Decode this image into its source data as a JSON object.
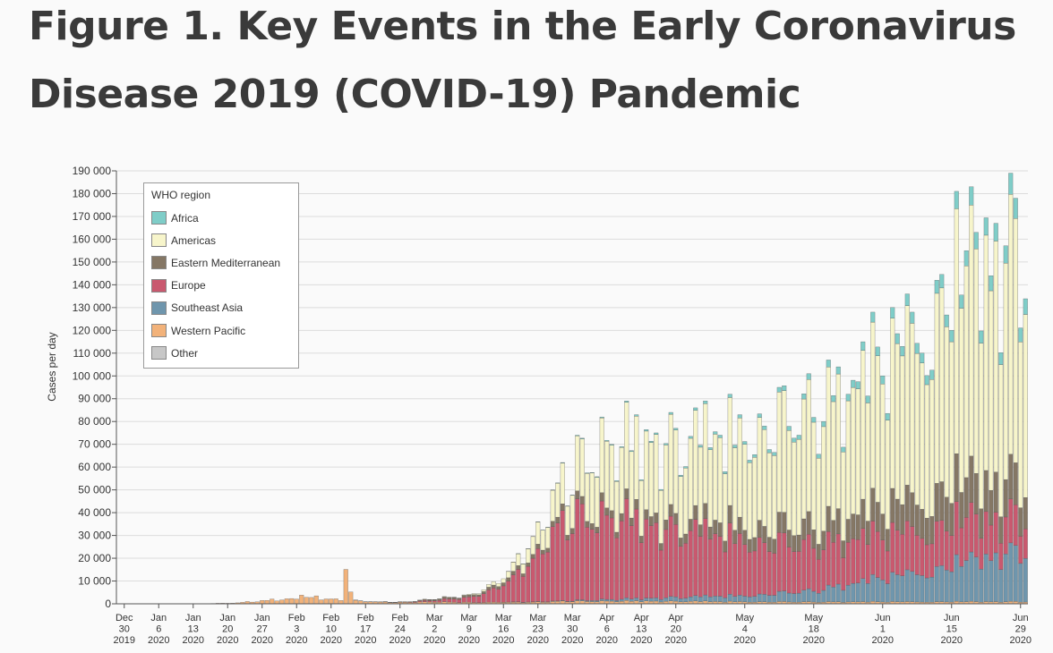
{
  "title_line1": "Figure 1.  Key Events in the Early Coronavirus",
  "title_line2": "Disease 2019 (COVID-19) Pandemic",
  "chart_data": {
    "type": "bar",
    "stacked": true,
    "ylabel": "Cases per day",
    "ylim": [
      0,
      190000
    ],
    "ytick_step": 10000,
    "grid": true,
    "legend_title": "WHO region",
    "legend_position": "top-left",
    "start_date": "2019-12-30",
    "end_date": "2020-06-30",
    "xtick_labels": [
      {
        "date": "2019-12-30",
        "lines": [
          "Dec",
          "30",
          "2019"
        ]
      },
      {
        "date": "2020-01-06",
        "lines": [
          "Jan",
          "6",
          "2020"
        ]
      },
      {
        "date": "2020-01-13",
        "lines": [
          "Jan",
          "13",
          "2020"
        ]
      },
      {
        "date": "2020-01-20",
        "lines": [
          "Jan",
          "20",
          "2020"
        ]
      },
      {
        "date": "2020-01-27",
        "lines": [
          "Jan",
          "27",
          "2020"
        ]
      },
      {
        "date": "2020-02-03",
        "lines": [
          "Feb",
          "3",
          "2020"
        ]
      },
      {
        "date": "2020-02-10",
        "lines": [
          "Feb",
          "10",
          "2020"
        ]
      },
      {
        "date": "2020-02-17",
        "lines": [
          "Feb",
          "17",
          "2020"
        ]
      },
      {
        "date": "2020-02-24",
        "lines": [
          "Feb",
          "24",
          "2020"
        ]
      },
      {
        "date": "2020-03-02",
        "lines": [
          "Mar",
          "2",
          "2020"
        ]
      },
      {
        "date": "2020-03-09",
        "lines": [
          "Mar",
          "9",
          "2020"
        ]
      },
      {
        "date": "2020-03-16",
        "lines": [
          "Mar",
          "16",
          "2020"
        ]
      },
      {
        "date": "2020-03-23",
        "lines": [
          "Mar",
          "23",
          "2020"
        ]
      },
      {
        "date": "2020-03-30",
        "lines": [
          "Mar",
          "30",
          "2020"
        ]
      },
      {
        "date": "2020-04-06",
        "lines": [
          "Apr",
          "6",
          "2020"
        ]
      },
      {
        "date": "2020-04-13",
        "lines": [
          "Apr",
          "13",
          "2020"
        ]
      },
      {
        "date": "2020-04-20",
        "lines": [
          "Apr",
          "20",
          "2020"
        ]
      },
      {
        "date": "2020-05-04",
        "lines": [
          "May",
          "4",
          "2020"
        ]
      },
      {
        "date": "2020-05-18",
        "lines": [
          "May",
          "18",
          "2020"
        ]
      },
      {
        "date": "2020-06-01",
        "lines": [
          "Jun",
          "1",
          "2020"
        ]
      },
      {
        "date": "2020-06-15",
        "lines": [
          "Jun",
          "15",
          "2020"
        ]
      },
      {
        "date": "2020-06-29",
        "lines": [
          "Jun",
          "29",
          "2020"
        ]
      }
    ],
    "series": [
      {
        "name": "Africa",
        "color": "#7fcdc8"
      },
      {
        "name": "Americas",
        "color": "#f7f5cb"
      },
      {
        "name": "Eastern Mediterranean",
        "color": "#857765"
      },
      {
        "name": "Europe",
        "color": "#c9596f"
      },
      {
        "name": "Southeast Asia",
        "color": "#6f96ad"
      },
      {
        "name": "Western Pacific",
        "color": "#f2b27a"
      },
      {
        "name": "Other",
        "color": "#c7c7c7"
      }
    ],
    "anchor_points": {
      "Western Pacific": [
        [
          "2019-12-30",
          0
        ],
        [
          "2020-01-10",
          0
        ],
        [
          "2020-01-20",
          300
        ],
        [
          "2020-01-24",
          700
        ],
        [
          "2020-01-27",
          1500
        ],
        [
          "2020-01-31",
          2000
        ],
        [
          "2020-02-04",
          3000
        ],
        [
          "2020-02-07",
          2900
        ],
        [
          "2020-02-09",
          2500
        ],
        [
          "2020-02-12",
          2000
        ],
        [
          "2020-02-16",
          1500
        ],
        [
          "2020-02-20",
          800
        ],
        [
          "2020-02-24",
          700
        ],
        [
          "2020-03-02",
          1000
        ],
        [
          "2020-03-09",
          700
        ],
        [
          "2020-03-16",
          800
        ],
        [
          "2020-03-23",
          900
        ],
        [
          "2020-03-30",
          1200
        ],
        [
          "2020-04-06",
          1300
        ],
        [
          "2020-04-20",
          1200
        ],
        [
          "2020-05-04",
          1000
        ],
        [
          "2020-05-18",
          900
        ],
        [
          "2020-06-01",
          900
        ],
        [
          "2020-06-15",
          900
        ],
        [
          "2020-06-30",
          1000
        ]
      ],
      "Southeast Asia": [
        [
          "2019-12-30",
          0
        ],
        [
          "2020-03-15",
          0
        ],
        [
          "2020-03-23",
          150
        ],
        [
          "2020-03-30",
          300
        ],
        [
          "2020-04-06",
          800
        ],
        [
          "2020-04-13",
          1200
        ],
        [
          "2020-04-20",
          2000
        ],
        [
          "2020-05-04",
          3000
        ],
        [
          "2020-05-18",
          5500
        ],
        [
          "2020-06-01",
          11000
        ],
        [
          "2020-06-15",
          16000
        ],
        [
          "2020-06-30",
          25000
        ]
      ],
      "Europe": [
        [
          "2019-12-30",
          0
        ],
        [
          "2020-02-20",
          0
        ],
        [
          "2020-02-24",
          100
        ],
        [
          "2020-03-02",
          800
        ],
        [
          "2020-03-09",
          2500
        ],
        [
          "2020-03-16",
          8000
        ],
        [
          "2020-03-23",
          24000
        ],
        [
          "2020-03-26",
          33000
        ],
        [
          "2020-03-30",
          39000
        ],
        [
          "2020-04-03",
          41000
        ],
        [
          "2020-04-08",
          40000
        ],
        [
          "2020-04-13",
          35000
        ],
        [
          "2020-04-20",
          33000
        ],
        [
          "2020-04-27",
          30000
        ],
        [
          "2020-05-04",
          27000
        ],
        [
          "2020-05-18",
          22000
        ],
        [
          "2020-06-01",
          20000
        ],
        [
          "2020-06-15",
          19000
        ],
        [
          "2020-06-30",
          17000
        ]
      ],
      "Eastern Mediterranean": [
        [
          "2019-12-30",
          0
        ],
        [
          "2020-02-20",
          0
        ],
        [
          "2020-02-26",
          100
        ],
        [
          "2020-03-02",
          800
        ],
        [
          "2020-03-09",
          900
        ],
        [
          "2020-03-16",
          1500
        ],
        [
          "2020-03-23",
          2000
        ],
        [
          "2020-03-30",
          3000
        ],
        [
          "2020-04-06",
          3500
        ],
        [
          "2020-04-13",
          4000
        ],
        [
          "2020-04-20",
          5000
        ],
        [
          "2020-05-04",
          7500
        ],
        [
          "2020-05-18",
          9500
        ],
        [
          "2020-06-01",
          13000
        ],
        [
          "2020-06-15",
          17000
        ],
        [
          "2020-06-30",
          18000
        ]
      ],
      "Americas": [
        [
          "2019-12-30",
          0
        ],
        [
          "2020-02-29",
          0
        ],
        [
          "2020-03-05",
          50
        ],
        [
          "2020-03-09",
          300
        ],
        [
          "2020-03-16",
          2000
        ],
        [
          "2020-03-23",
          10000
        ],
        [
          "2020-03-27",
          15000
        ],
        [
          "2020-03-30",
          19000
        ],
        [
          "2020-04-03",
          29000
        ],
        [
          "2020-04-06",
          32000
        ],
        [
          "2020-04-13",
          34000
        ],
        [
          "2020-04-20",
          38000
        ],
        [
          "2020-04-27",
          40000
        ],
        [
          "2020-05-04",
          45000
        ],
        [
          "2020-05-11",
          50000
        ],
        [
          "2020-05-18",
          55000
        ],
        [
          "2020-05-25",
          58000
        ],
        [
          "2020-06-01",
          65000
        ],
        [
          "2020-06-08",
          75000
        ],
        [
          "2020-06-15",
          85000
        ],
        [
          "2020-06-22",
          100000
        ],
        [
          "2020-06-30",
          105000
        ]
      ],
      "Africa": [
        [
          "2019-12-30",
          0
        ],
        [
          "2020-03-16",
          0
        ],
        [
          "2020-03-23",
          100
        ],
        [
          "2020-03-30",
          250
        ],
        [
          "2020-04-06",
          400
        ],
        [
          "2020-04-20",
          800
        ],
        [
          "2020-05-04",
          1500
        ],
        [
          "2020-05-18",
          2500
        ],
        [
          "2020-06-01",
          4000
        ],
        [
          "2020-06-15",
          6000
        ],
        [
          "2020-06-30",
          9000
        ]
      ],
      "Other": [
        [
          "2019-12-30",
          0
        ],
        [
          "2020-02-14",
          0
        ],
        [
          "2020-02-16",
          40
        ],
        [
          "2020-02-22",
          60
        ],
        [
          "2020-02-25",
          0
        ],
        [
          "2020-06-30",
          0
        ]
      ]
    },
    "totals": [
      [
        "2020-01-24",
        1000
      ],
      [
        "2020-01-29",
        2100
      ],
      [
        "2020-02-04",
        3800
      ],
      [
        "2020-02-07",
        3500
      ],
      [
        "2020-02-13",
        15100
      ],
      [
        "2020-02-14",
        5200
      ],
      [
        "2020-02-21",
        1000
      ],
      [
        "2020-03-10",
        4500
      ],
      [
        "2020-03-16",
        11000
      ],
      [
        "2020-03-23",
        36000
      ],
      [
        "2020-03-26",
        50000
      ],
      [
        "2020-03-28",
        62000
      ],
      [
        "2020-03-31",
        74000
      ],
      [
        "2020-04-05",
        82000
      ],
      [
        "2020-04-07",
        70000
      ],
      [
        "2020-04-10",
        89000
      ],
      [
        "2020-04-12",
        83000
      ],
      [
        "2020-04-16",
        75000
      ],
      [
        "2020-04-19",
        84000
      ],
      [
        "2020-04-24",
        86000
      ],
      [
        "2020-04-26",
        89000
      ],
      [
        "2020-04-29",
        74000
      ],
      [
        "2020-05-01",
        92000
      ],
      [
        "2020-05-03",
        83000
      ],
      [
        "2020-05-08",
        78000
      ],
      [
        "2020-05-11",
        95000
      ],
      [
        "2020-05-15",
        74000
      ],
      [
        "2020-05-17",
        101000
      ],
      [
        "2020-05-21",
        107000
      ],
      [
        "2020-05-23",
        104000
      ],
      [
        "2020-05-25",
        92000
      ],
      [
        "2020-05-28",
        115000
      ],
      [
        "2020-05-30",
        128000
      ],
      [
        "2020-06-01",
        100000
      ],
      [
        "2020-06-03",
        130000
      ],
      [
        "2020-06-06",
        136000
      ],
      [
        "2020-06-07",
        128000
      ],
      [
        "2020-06-09",
        110000
      ],
      [
        "2020-06-12",
        142000
      ],
      [
        "2020-06-15",
        120000
      ],
      [
        "2020-06-16",
        181000
      ],
      [
        "2020-06-19",
        183000
      ],
      [
        "2020-06-20",
        163000
      ],
      [
        "2020-06-23",
        144000
      ],
      [
        "2020-06-24",
        167000
      ],
      [
        "2020-06-27",
        189000
      ],
      [
        "2020-06-28",
        178000
      ]
    ]
  }
}
